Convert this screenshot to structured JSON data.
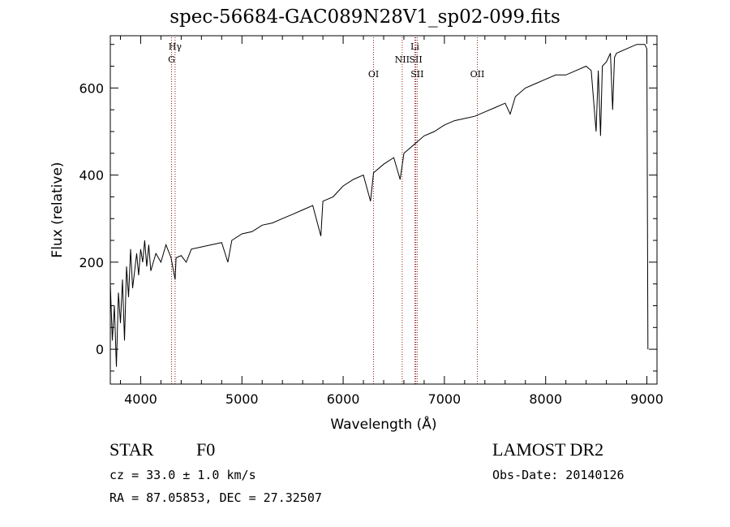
{
  "chart_data": {
    "type": "line",
    "title": "spec-56684-GAC089N28V1_sp02-099.fits",
    "xlabel": "Wavelength (Å)",
    "ylabel": "Flux (relative)",
    "xlim": [
      3700,
      9100
    ],
    "ylim": [
      -80,
      720
    ],
    "xticks": [
      4000,
      5000,
      6000,
      7000,
      8000,
      9000
    ],
    "yticks": [
      0,
      200,
      400,
      600
    ],
    "series": [
      {
        "color": "#000000",
        "x": [
          3700,
          3720,
          3740,
          3760,
          3780,
          3800,
          3820,
          3840,
          3860,
          3880,
          3900,
          3920,
          3940,
          3960,
          3980,
          4000,
          4020,
          4040,
          4060,
          4080,
          4100,
          4150,
          4200,
          4250,
          4300,
          4340,
          4350,
          4400,
          4450,
          4500,
          4600,
          4700,
          4800,
          4861,
          4900,
          5000,
          5100,
          5200,
          5300,
          5400,
          5500,
          5600,
          5700,
          5780,
          5800,
          5900,
          6000,
          6100,
          6200,
          6270,
          6300,
          6400,
          6500,
          6563,
          6600,
          6700,
          6800,
          6900,
          7000,
          7100,
          7200,
          7300,
          7400,
          7500,
          7600,
          7650,
          7700,
          7800,
          7900,
          8000,
          8100,
          8200,
          8300,
          8400,
          8450,
          8498,
          8520,
          8542,
          8560,
          8600,
          8640,
          8662,
          8680,
          8700,
          8800,
          8900,
          8950,
          8980,
          9000,
          9010
        ],
        "values": [
          150,
          20,
          100,
          -40,
          130,
          60,
          160,
          20,
          190,
          120,
          230,
          140,
          180,
          220,
          170,
          230,
          200,
          250,
          190,
          240,
          180,
          220,
          200,
          240,
          210,
          160,
          210,
          215,
          200,
          230,
          235,
          240,
          245,
          200,
          250,
          265,
          270,
          285,
          290,
          300,
          310,
          320,
          330,
          260,
          340,
          350,
          375,
          390,
          400,
          340,
          405,
          425,
          440,
          390,
          450,
          470,
          490,
          500,
          515,
          525,
          530,
          535,
          545,
          555,
          565,
          540,
          580,
          600,
          610,
          620,
          630,
          630,
          640,
          650,
          640,
          500,
          640,
          490,
          650,
          660,
          680,
          550,
          670,
          680,
          690,
          700,
          700,
          700,
          690,
          0
        ]
      }
    ],
    "lines": [
      {
        "label": "Hγ",
        "wavelength": 4340,
        "row": 1
      },
      {
        "label": "G",
        "wavelength": 4305,
        "row": 2
      },
      {
        "label": "OI",
        "wavelength": 6300,
        "row": 3
      },
      {
        "label": "NII",
        "wavelength": 6583,
        "row": 2
      },
      {
        "label": "Li",
        "wavelength": 6708,
        "row": 1
      },
      {
        "label": "SII",
        "wavelength": 6717,
        "row": 2
      },
      {
        "label": "SII",
        "wavelength": 6731,
        "row": 3
      },
      {
        "label": "OII",
        "wavelength": 7325,
        "row": 3
      }
    ]
  },
  "info": {
    "class": "STAR",
    "subclass": "F0",
    "survey": "LAMOST DR2",
    "cz": "cz = 33.0 ± 1.0 km/s",
    "obs_date": "Obs-Date: 20140126",
    "radec": "RA =  87.05853, DEC =  27.32507"
  }
}
